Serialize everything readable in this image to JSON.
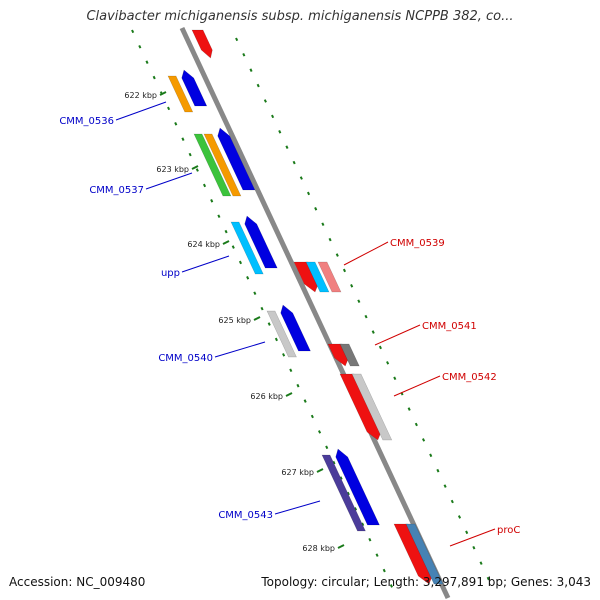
{
  "title": "Clavibacter michiganensis subsp. michiganensis NCPPB 382, co...",
  "footer": {
    "accession": "Accession: NC_009480",
    "summary": "Topology: circular; Length: 3,297,891 bp; Genes: 3,043"
  },
  "colors": {
    "backbone": "#888888",
    "tick": "#1a7a1a",
    "forward_label": "#0000c8",
    "reverse_label": "#d00000"
  },
  "kbp_ticks": [
    "622 kbp",
    "623 kbp",
    "624 kbp",
    "625 kbp",
    "626 kbp",
    "627 kbp",
    "628 kbp"
  ],
  "genes_forward": [
    {
      "label": "CMM_0536",
      "colors": [
        "#f59a00",
        "#0000e0"
      ]
    },
    {
      "label": "CMM_0537",
      "colors": [
        "#3cc33c",
        "#f59a00",
        "#0000e0"
      ]
    },
    {
      "label": "upp",
      "colors": [
        "#00bfff",
        "#0000e0"
      ]
    },
    {
      "label": "CMM_0540",
      "colors": [
        "#c8c8c8",
        "#0000e0"
      ]
    },
    {
      "label": "CMM_0543",
      "colors": [
        "#4b3c9a",
        "#0000e0"
      ]
    }
  ],
  "genes_reverse": [
    {
      "label": "CMM_0539",
      "colors": [
        "#ee1111",
        "#00bfff",
        "#f08080"
      ]
    },
    {
      "label": "CMM_0541",
      "colors": [
        "#ee1111",
        "#777777"
      ]
    },
    {
      "label": "CMM_0542",
      "colors": [
        "#ee1111",
        "#c8c8c8"
      ]
    },
    {
      "label": "proC",
      "colors": [
        "#ee1111",
        "#4682b4"
      ]
    }
  ]
}
